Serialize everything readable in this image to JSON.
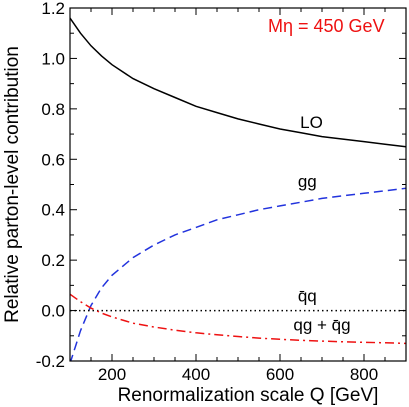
{
  "chart_data": {
    "type": "line",
    "title": "",
    "xlabel": "Renormalization scale Q  [GeV]",
    "ylabel": "Relative parton-level contribution",
    "xlim": [
      100,
      900
    ],
    "ylim": [
      -0.2,
      1.2
    ],
    "x_ticks": [
      200,
      400,
      600,
      800
    ],
    "x_tick_labels": [
      "200",
      "400",
      "600",
      "800"
    ],
    "y_ticks": [
      -0.2,
      0.0,
      0.2,
      0.4,
      0.6,
      0.8,
      1.0,
      1.2
    ],
    "y_tick_labels": [
      "-0.2",
      "0.0",
      "0.2",
      "0.4",
      "0.6",
      "0.8",
      "1.0",
      "1.2"
    ],
    "grid": false,
    "legend": "none",
    "annotation_mass": "Mη = 450 GeV",
    "series": [
      {
        "name": "LO",
        "color": "#000000",
        "style": "solid",
        "x": [
          100,
          125,
          150,
          175,
          200,
          250,
          300,
          350,
          400,
          450,
          500,
          550,
          600,
          650,
          700,
          750,
          800,
          850,
          900
        ],
        "y": [
          1.16,
          1.1,
          1.05,
          1.01,
          0.975,
          0.92,
          0.88,
          0.845,
          0.81,
          0.785,
          0.76,
          0.74,
          0.72,
          0.705,
          0.69,
          0.68,
          0.67,
          0.66,
          0.65
        ]
      },
      {
        "name": "gg",
        "color": "#2233dd",
        "style": "dashed",
        "x": [
          100,
          125,
          150,
          175,
          200,
          250,
          300,
          350,
          400,
          450,
          500,
          550,
          600,
          650,
          700,
          750,
          800,
          850,
          900
        ],
        "y": [
          -0.21,
          -0.08,
          0.02,
          0.09,
          0.14,
          0.21,
          0.26,
          0.3,
          0.33,
          0.36,
          0.38,
          0.4,
          0.415,
          0.43,
          0.445,
          0.455,
          0.465,
          0.475,
          0.485
        ]
      },
      {
        "name": "q̄q",
        "color": "#000000",
        "style": "dotted",
        "x": [
          100,
          900
        ],
        "y": [
          0.0,
          0.0
        ]
      },
      {
        "name": "qg + q̄g",
        "color": "#ee1111",
        "style": "dashdot",
        "x": [
          100,
          125,
          150,
          175,
          200,
          250,
          300,
          350,
          400,
          450,
          500,
          550,
          600,
          650,
          700,
          750,
          800,
          850,
          900
        ],
        "y": [
          0.065,
          0.035,
          0.01,
          -0.01,
          -0.025,
          -0.05,
          -0.065,
          -0.078,
          -0.088,
          -0.096,
          -0.103,
          -0.109,
          -0.114,
          -0.118,
          -0.121,
          -0.124,
          -0.126,
          -0.128,
          -0.13
        ]
      }
    ],
    "curve_labels": [
      {
        "key": "LO",
        "at": [
          675,
          0.725
        ]
      },
      {
        "key": "gg",
        "at": [
          665,
          0.49
        ]
      },
      {
        "key": "qq",
        "at": [
          665,
          0.035
        ]
      },
      {
        "key": "qg",
        "at": [
          700,
          -0.08
        ]
      }
    ]
  }
}
